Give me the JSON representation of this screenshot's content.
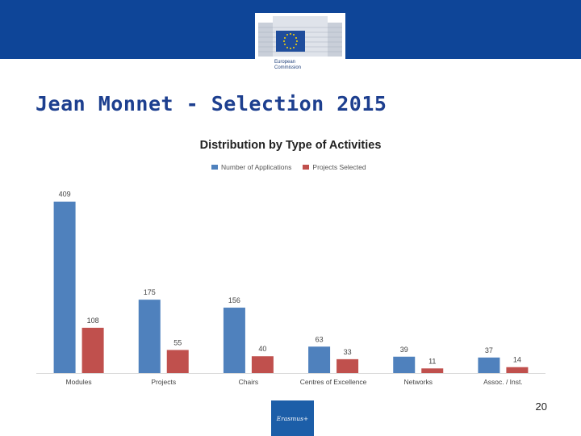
{
  "header": {
    "logo_line1": "European",
    "logo_line2": "Commission"
  },
  "slide": {
    "title": "Jean Monnet - Selection 2015",
    "page_number": "20"
  },
  "footer": {
    "erasmus_label": "Erasmus+"
  },
  "colors": {
    "header_band": "#0e4598",
    "series_applications": "#4f81bd",
    "series_selected": "#c0504d"
  },
  "chart_data": {
    "type": "bar",
    "title": "Distribution by Type of Activities",
    "categories": [
      "Modules",
      "Projects",
      "Chairs",
      "Centres of Excellence",
      "Networks",
      "Assoc. / Inst."
    ],
    "series": [
      {
        "name": "Number of Applications",
        "values": [
          409,
          175,
          156,
          63,
          39,
          37
        ]
      },
      {
        "name": "Projects Selected",
        "values": [
          108,
          55,
          40,
          33,
          11,
          14
        ]
      }
    ],
    "xlabel": "",
    "ylabel": "",
    "ylim": [
      0,
      420
    ],
    "grid": false,
    "legend": "top"
  }
}
